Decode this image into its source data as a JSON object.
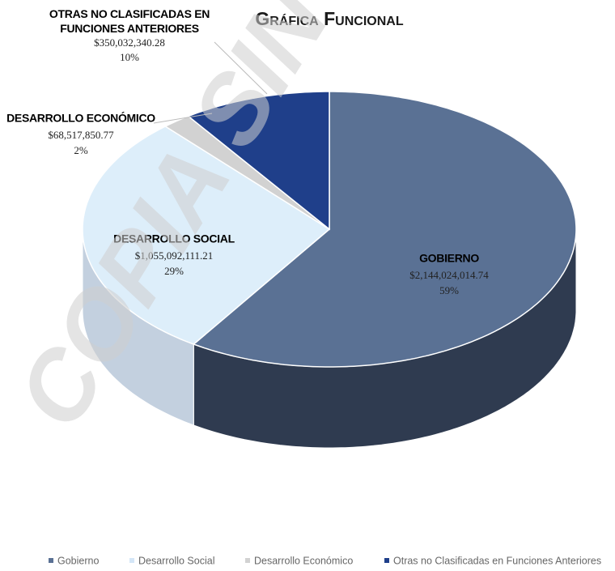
{
  "chart_data": {
    "type": "pie3d",
    "title": "Gráfica Funcional",
    "watermark": "COPIA SIN",
    "categories": [
      "Gobierno",
      "Desarrollo Social",
      "Desarrollo Económico",
      "Otras no Clasificadas en Funciones Anteriores"
    ],
    "labels": [
      "GOBIERNO",
      "DESARROLLO SOCIAL",
      "DESARROLLO ECONÓMICO",
      "OTRAS NO CLASIFICADAS EN FUNCIONES ANTERIORES"
    ],
    "values": [
      2144024014.74,
      1055092111.21,
      68517850.77,
      350032340.28
    ],
    "value_labels": [
      "$2,144,024,014.74",
      "$1,055,092,111.21",
      "$68,517,850.77",
      "$350,032,340.28"
    ],
    "percents": [
      59,
      29,
      2,
      10
    ],
    "percent_labels": [
      "59%",
      "29%",
      "2%",
      "10%"
    ],
    "colors": [
      "#5a7194",
      "#ddeefa",
      "#d2d2d2",
      "#1f3f8a"
    ],
    "side_colors": [
      "#2f3b50",
      "#c3d0df",
      "#a9a9a9",
      "#142a5e"
    ]
  }
}
